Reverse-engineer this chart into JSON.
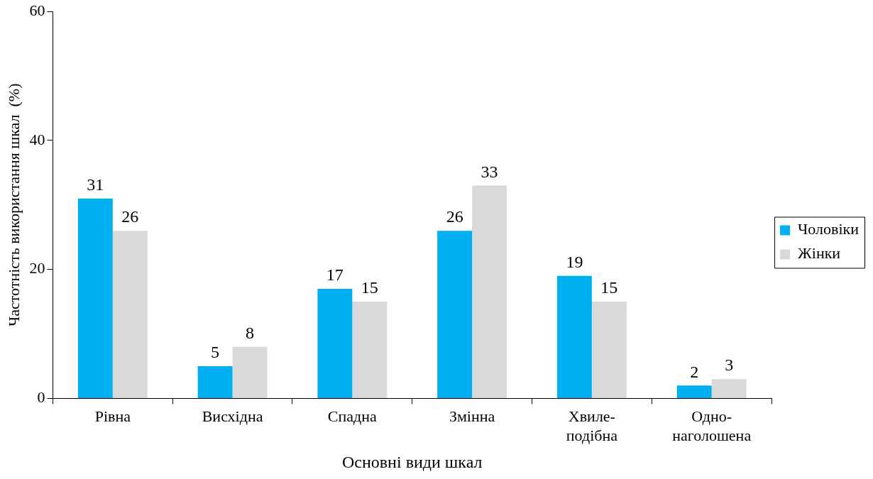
{
  "chart_data": {
    "type": "bar",
    "xlabel": "Основні види шкал",
    "ylabel": "Частотність використання шкал  (%)",
    "categories": [
      "Рівна",
      "Висхідна",
      "Спадна",
      "Змінна",
      "Хвиле-\nподібна",
      "Одно-\nнаголошена"
    ],
    "series": [
      {
        "name": "Чоловіки",
        "color": "#00b0f0",
        "values": [
          31,
          5,
          17,
          26,
          19,
          2
        ]
      },
      {
        "name": "Жінки",
        "color": "#d9d9d9",
        "values": [
          26,
          8,
          15,
          33,
          15,
          3
        ]
      }
    ],
    "ylim": [
      0,
      60
    ],
    "yticks": [
      0,
      20,
      40,
      60
    ],
    "grid": false,
    "legend": "right",
    "data_labels": true
  }
}
